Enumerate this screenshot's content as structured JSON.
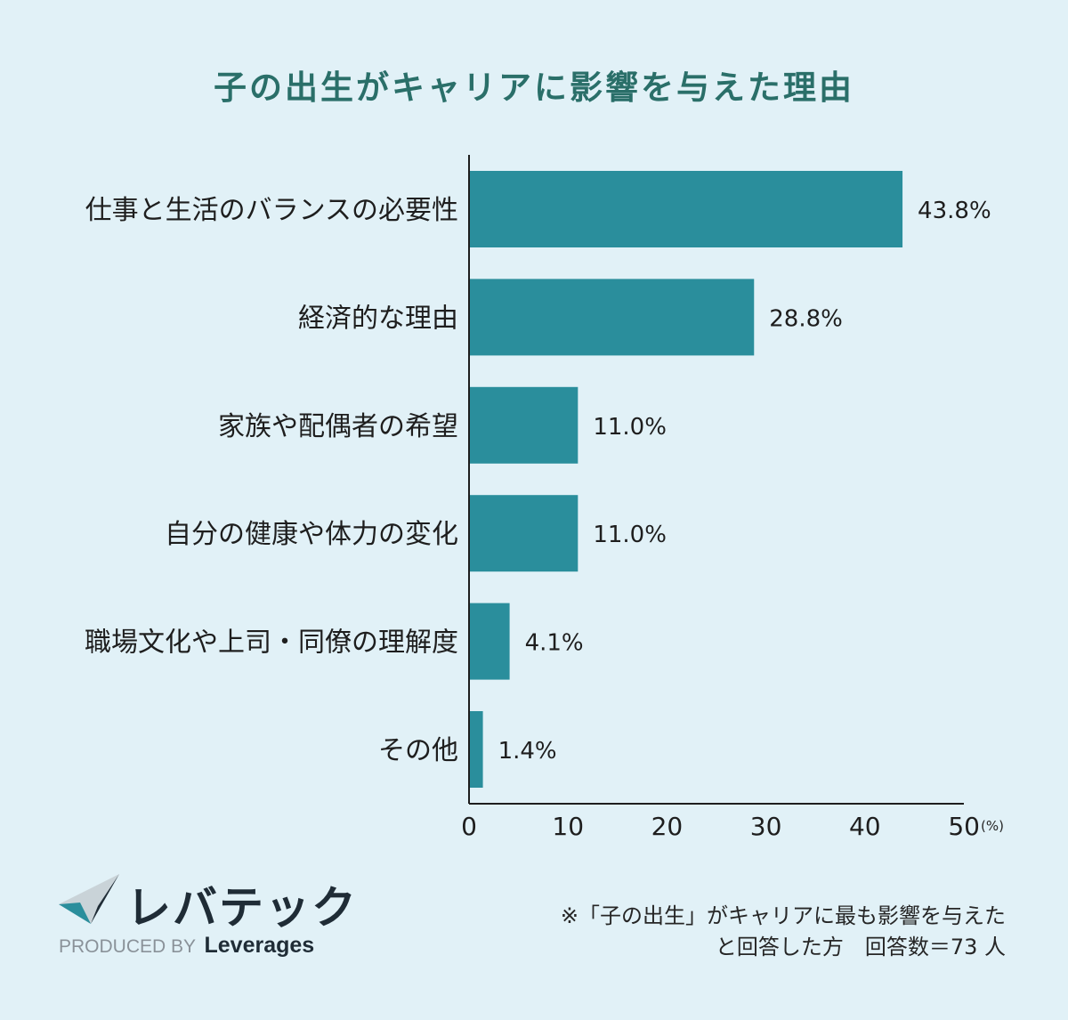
{
  "title": "子の出生がキャリアに影響を与えた理由",
  "chart_data": {
    "type": "bar",
    "orientation": "horizontal",
    "title": "子の出生がキャリアに影響を与えた理由",
    "categories": [
      "仕事と生活のバランスの必要性",
      "経済的な理由",
      "家族や配偶者の希望",
      "自分の健康や体力の変化",
      "職場文化や上司・同僚の理解度",
      "その他"
    ],
    "values": [
      43.8,
      28.8,
      11.0,
      11.0,
      4.1,
      1.4
    ],
    "value_labels": [
      "43.8%",
      "28.8%",
      "11.0%",
      "11.0%",
      "4.1%",
      "1.4%"
    ],
    "x_ticks": [
      0,
      10,
      20,
      30,
      40,
      50
    ],
    "x_unit_label": "(%)",
    "xlim": [
      0,
      50
    ],
    "grid": false,
    "legend": "none",
    "bar_color": "#2a8e9c"
  },
  "logo": {
    "wordmark": "レバテック",
    "produced_by": "PRODUCED BY",
    "brand": "Leverages",
    "colors": [
      "#1f2c36",
      "#2a8e9c",
      "#c9d3d8"
    ]
  },
  "footnote": {
    "line1": "※「子の出生」がキャリアに最も影響を与えた",
    "line2": "と回答した方　回答数＝73 人"
  }
}
